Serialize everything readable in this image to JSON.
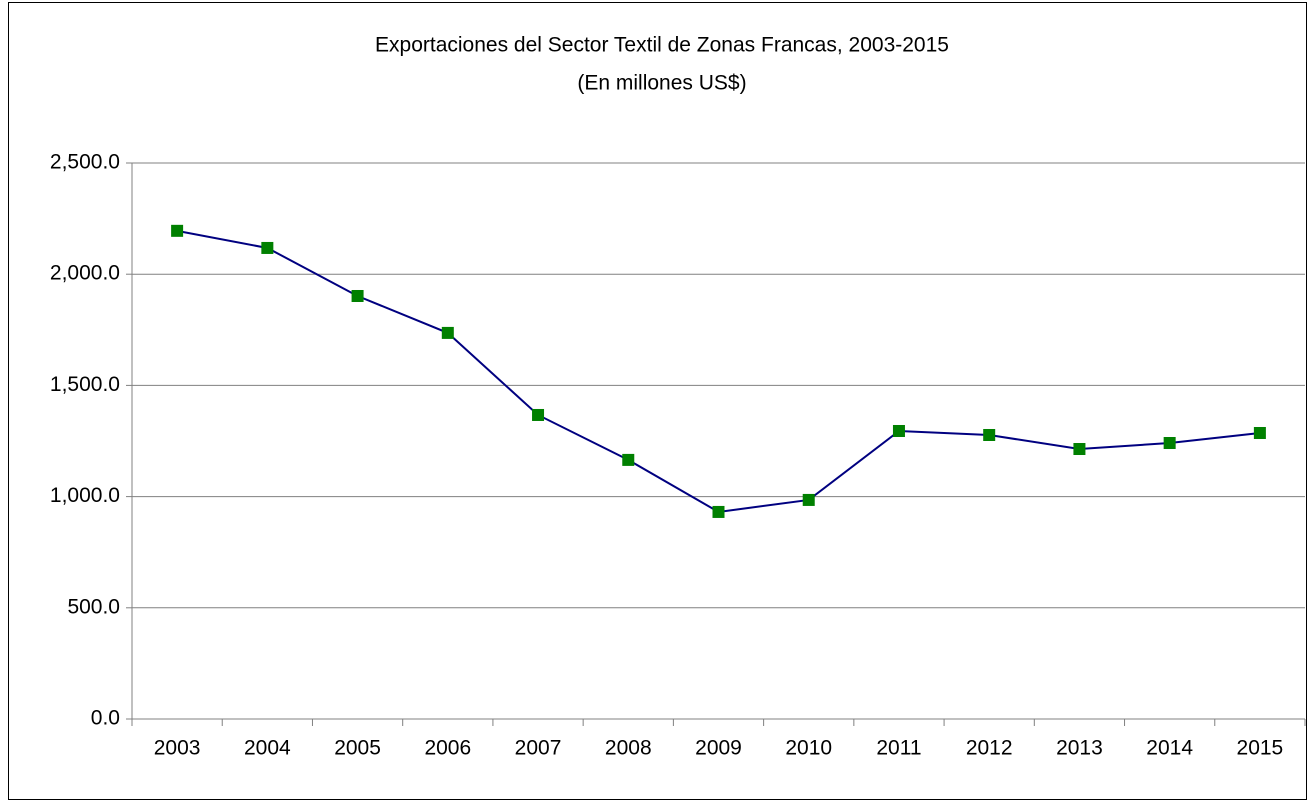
{
  "chart_data": {
    "type": "line",
    "title": "Exportaciones  del Sector Textil de Zonas Francas, 2003-2015",
    "subtitle": "(En millones US$)",
    "categories": [
      "2003",
      "2004",
      "2005",
      "2006",
      "2007",
      "2008",
      "2009",
      "2010",
      "2011",
      "2012",
      "2013",
      "2014",
      "2015"
    ],
    "series": [
      {
        "name": "Exportaciones",
        "color": "#000080",
        "marker_color": "#008000",
        "values": [
          2195,
          2118,
          1902,
          1736,
          1367,
          1165,
          931,
          985,
          1295,
          1277,
          1214,
          1241,
          1286
        ]
      }
    ],
    "ylim": [
      0,
      2500
    ],
    "yticks": [
      {
        "value": 0,
        "label": "0.0"
      },
      {
        "value": 500,
        "label": "500.0"
      },
      {
        "value": 1000,
        "label": "1,000.0"
      },
      {
        "value": 1500,
        "label": "1,500.0"
      },
      {
        "value": 2000,
        "label": "2,000.0"
      },
      {
        "value": 2500,
        "label": "2,500.0"
      }
    ],
    "grid": true
  }
}
